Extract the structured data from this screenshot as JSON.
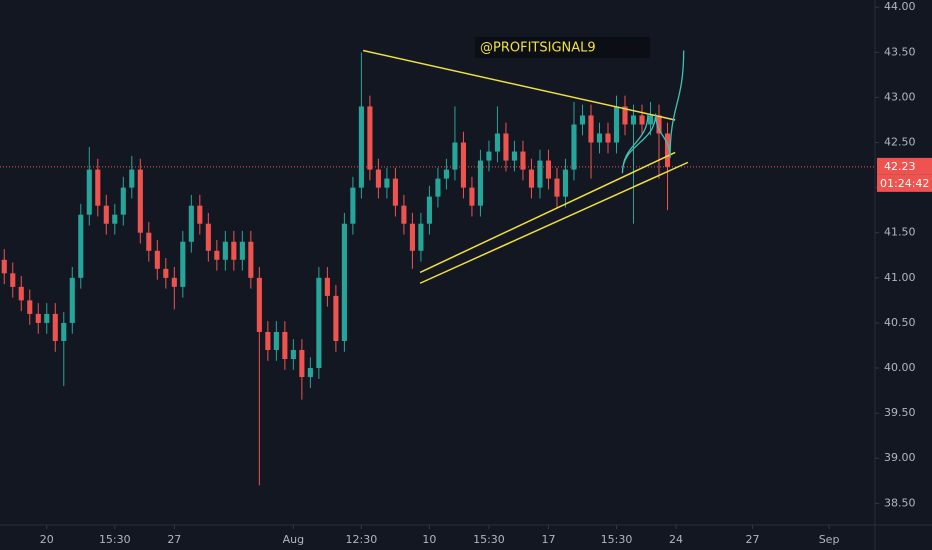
{
  "chart_data": {
    "type": "candlestick",
    "x": [
      0,
      1,
      2,
      3,
      4,
      5,
      6,
      7,
      8,
      9,
      10,
      11,
      12,
      13,
      14,
      15,
      16,
      17,
      18,
      19,
      20,
      21,
      22,
      23,
      24,
      25,
      26,
      27,
      28,
      29,
      30,
      31,
      32,
      33,
      34,
      35,
      36,
      37,
      38,
      39,
      40,
      41,
      42,
      43,
      44,
      45,
      46,
      47,
      48,
      49,
      50,
      51,
      52,
      53,
      54,
      55,
      56,
      57,
      58,
      59,
      60,
      61,
      62,
      63,
      64,
      65,
      66,
      67,
      68,
      69,
      70,
      71,
      72,
      73,
      74,
      75,
      76,
      77,
      78
    ],
    "open": [
      41.2,
      41.05,
      40.9,
      40.75,
      40.6,
      40.5,
      40.6,
      40.3,
      40.5,
      41.0,
      41.7,
      42.2,
      41.8,
      41.6,
      41.7,
      42.0,
      42.2,
      41.5,
      41.3,
      41.1,
      41.0,
      40.9,
      41.4,
      41.8,
      41.6,
      41.3,
      41.2,
      41.4,
      41.2,
      41.4,
      41.0,
      40.4,
      40.2,
      40.4,
      40.1,
      40.2,
      39.9,
      40.0,
      41.0,
      40.8,
      40.3,
      41.6,
      42.0,
      42.9,
      42.2,
      42.0,
      42.1,
      41.8,
      41.6,
      41.3,
      41.6,
      41.9,
      42.1,
      42.2,
      42.5,
      42.0,
      41.8,
      42.3,
      42.4,
      42.6,
      42.3,
      42.4,
      42.2,
      42.0,
      42.3,
      42.1,
      41.9,
      42.2,
      42.7,
      42.8,
      42.5,
      42.6,
      42.5,
      42.9,
      42.7,
      42.8,
      42.7,
      42.8,
      42.6
    ],
    "high": [
      41.32,
      41.17,
      41.02,
      40.87,
      40.72,
      40.72,
      40.72,
      40.62,
      41.12,
      41.82,
      42.45,
      42.32,
      41.92,
      41.82,
      42.12,
      42.35,
      42.32,
      41.62,
      41.42,
      41.22,
      41.12,
      41.52,
      41.92,
      41.92,
      41.72,
      41.42,
      41.52,
      41.52,
      41.52,
      41.52,
      41.12,
      40.52,
      40.52,
      40.52,
      40.32,
      40.32,
      40.12,
      41.12,
      41.12,
      40.92,
      41.72,
      42.12,
      43.5,
      43.02,
      42.32,
      42.22,
      42.22,
      41.92,
      41.72,
      41.72,
      42.02,
      42.22,
      42.32,
      42.9,
      42.62,
      42.12,
      42.42,
      42.52,
      42.9,
      42.72,
      42.52,
      42.52,
      42.32,
      42.42,
      42.42,
      42.22,
      42.32,
      42.95,
      42.92,
      42.92,
      42.72,
      42.72,
      43.02,
      43.02,
      42.92,
      42.92,
      42.95,
      42.92,
      42.72
    ],
    "low": [
      40.93,
      40.78,
      40.63,
      40.48,
      40.38,
      40.38,
      40.18,
      39.8,
      40.38,
      40.88,
      41.58,
      41.68,
      41.48,
      41.48,
      41.58,
      41.88,
      41.38,
      41.18,
      40.98,
      40.88,
      40.65,
      40.78,
      41.28,
      41.48,
      41.18,
      41.08,
      41.08,
      41.08,
      41.08,
      40.88,
      38.7,
      40.08,
      40.08,
      39.98,
      39.98,
      39.65,
      39.78,
      39.88,
      40.68,
      40.18,
      40.18,
      41.48,
      41.88,
      42.08,
      41.88,
      41.88,
      41.68,
      41.48,
      41.1,
      41.18,
      41.48,
      41.78,
      41.98,
      42.08,
      41.88,
      41.68,
      41.68,
      42.18,
      42.28,
      42.18,
      42.18,
      42.08,
      41.88,
      41.88,
      41.98,
      41.78,
      41.78,
      42.08,
      42.58,
      42.1,
      42.38,
      42.38,
      42.38,
      42.58,
      41.6,
      42.58,
      42.58,
      42.1,
      41.75
    ],
    "close": [
      41.05,
      40.9,
      40.75,
      40.6,
      40.5,
      40.6,
      40.3,
      40.5,
      41.0,
      41.7,
      42.2,
      41.8,
      41.6,
      41.7,
      42.0,
      42.2,
      41.5,
      41.3,
      41.1,
      41.0,
      40.9,
      41.4,
      41.8,
      41.6,
      41.3,
      41.2,
      41.4,
      41.2,
      41.4,
      41.0,
      40.4,
      40.2,
      40.4,
      40.1,
      40.2,
      39.9,
      40.0,
      41.0,
      40.8,
      40.3,
      41.6,
      42.0,
      42.9,
      42.2,
      42.0,
      42.1,
      41.8,
      41.6,
      41.3,
      41.6,
      41.9,
      42.1,
      42.2,
      42.5,
      42.0,
      41.8,
      42.3,
      42.4,
      42.6,
      42.3,
      42.4,
      42.2,
      42.0,
      42.3,
      42.1,
      41.9,
      42.2,
      42.7,
      42.8,
      42.5,
      42.6,
      42.5,
      42.9,
      42.7,
      42.8,
      42.7,
      42.8,
      42.6,
      42.23
    ],
    "up_color": "#26a69a",
    "down_color": "#ef5350",
    "xlim": [
      -0.5,
      102.4
    ],
    "ylim": [
      38.26,
      44.08
    ],
    "xticks": [
      {
        "value": 5,
        "label": "20"
      },
      {
        "value": 13,
        "label": "15:30"
      },
      {
        "value": 20,
        "label": "27"
      },
      {
        "value": 34,
        "label": "Aug"
      },
      {
        "value": 42,
        "label": "12:30"
      },
      {
        "value": 50,
        "label": "10"
      },
      {
        "value": 57,
        "label": "15:30"
      },
      {
        "value": 64,
        "label": "17"
      },
      {
        "value": 72,
        "label": "15:30"
      },
      {
        "value": 79,
        "label": "24"
      },
      {
        "value": 88,
        "label": "27"
      },
      {
        "value": 97,
        "label": "Sep"
      }
    ],
    "yticks": [
      {
        "value": 38.5,
        "label": "38.50"
      },
      {
        "value": 39,
        "label": "39.00"
      },
      {
        "value": 39.5,
        "label": "39.50"
      },
      {
        "value": 40,
        "label": "40.00"
      },
      {
        "value": 40.5,
        "label": "40.50"
      },
      {
        "value": 41,
        "label": "41.00"
      },
      {
        "value": 41.5,
        "label": "41.50"
      },
      {
        "value": 42,
        "label": "42.00"
      },
      {
        "value": 42.5,
        "label": "42.50"
      },
      {
        "value": 43,
        "label": "43.00"
      },
      {
        "value": 43.5,
        "label": "43.50"
      },
      {
        "value": 44,
        "label": "44.00"
      }
    ],
    "last_price": {
      "value": 42.23,
      "label": "42.23"
    },
    "countdown": "01:24:42",
    "watermark": "@PROFITSIGNAL9",
    "trendline_color": "#f2e03a",
    "trendlines": [
      {
        "x": [
          42.2,
          78.9
        ],
        "y": [
          43.52,
          42.75
        ]
      },
      {
        "x": [
          48.9,
          78.9
        ],
        "y": [
          41.06,
          42.39
        ]
      },
      {
        "x": [
          48.9,
          80.4
        ],
        "y": [
          40.94,
          42.28
        ]
      }
    ],
    "projection": {
      "color": "#3fc1b5",
      "x": [
        75.7,
        72.7,
        76.6,
        78.3,
        79.9
      ],
      "y": [
        42.82,
        42.16,
        42.82,
        42.33,
        43.52
      ]
    }
  }
}
